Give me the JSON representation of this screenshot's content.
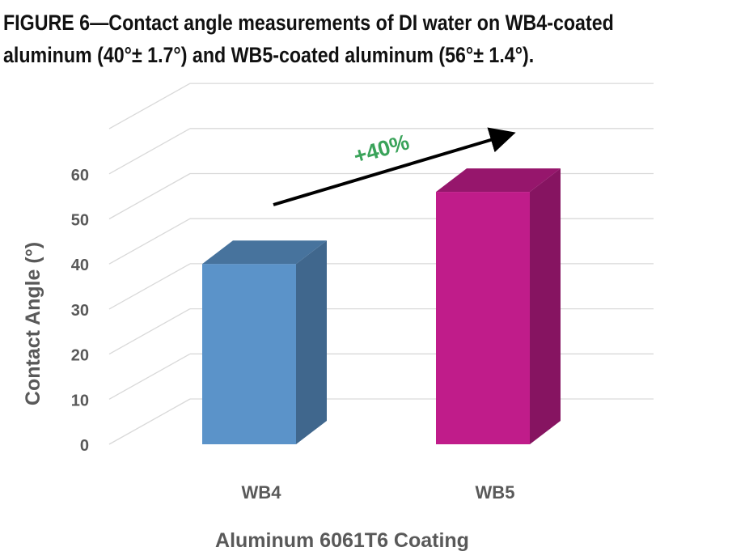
{
  "figure": {
    "caption_line1": "FIGURE 6—Contact angle measurements of DI water on WB4-coated",
    "caption_line2": "aluminum (40°± 1.7°) and WB5-coated aluminum (56°± 1.4°)."
  },
  "chart_data": {
    "type": "bar",
    "style": "3d-column",
    "categories": [
      "WB4",
      "WB5"
    ],
    "values": [
      40,
      56
    ],
    "colors": {
      "WB4": "#5b93c9",
      "WB5": "#c01c8a",
      "gridline": "#d9d9d9",
      "axis_text": "#595959",
      "annotation": "#3aa35a"
    },
    "xlabel": "Aluminum 6061T6 Coating",
    "ylabel": "Contact Angle (°)",
    "ylim": [
      0,
      70
    ],
    "yticks": [
      "0",
      "10",
      "20",
      "30",
      "40",
      "50",
      "60"
    ],
    "grid": true,
    "annotation": {
      "text": "+40%",
      "arrow": "increase from WB4 to WB5"
    }
  }
}
